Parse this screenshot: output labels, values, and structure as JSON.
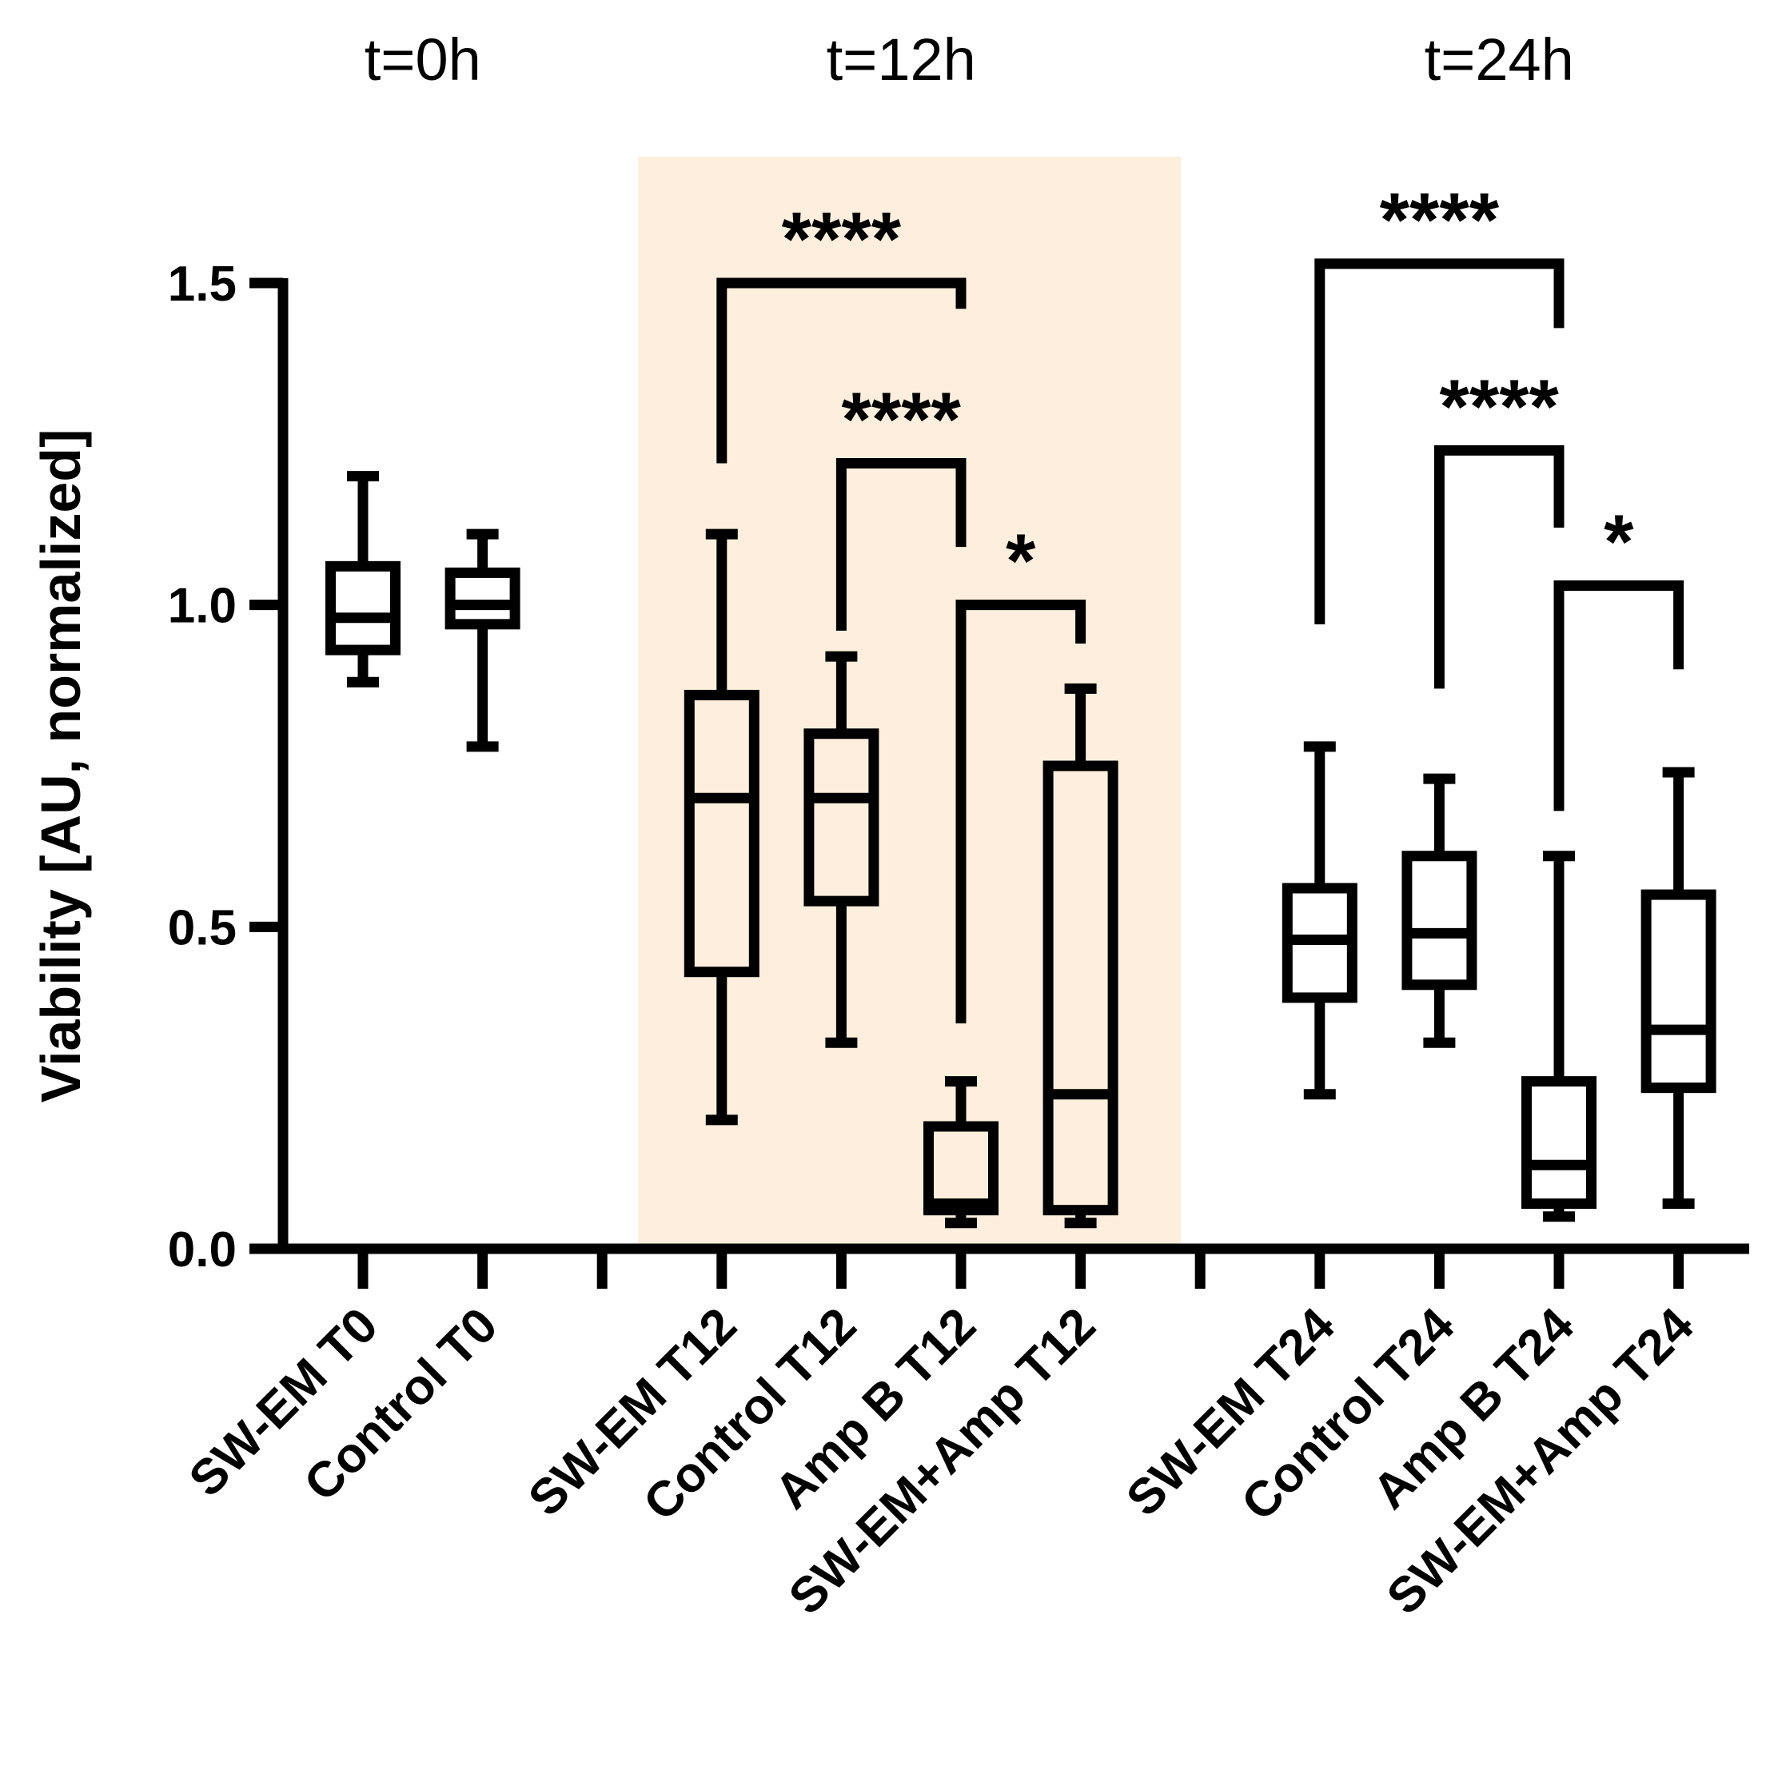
{
  "chart_data": {
    "type": "box",
    "ylabel": "Viability [AU, normalized]",
    "ylim": [
      0,
      1.5
    ],
    "yticks": [
      "0.0",
      "0.5",
      "1.0",
      "1.5"
    ],
    "ytick_values": [
      0,
      0.5,
      1.0,
      1.5
    ],
    "groups": [
      {
        "title": "t=0h",
        "highlight": false
      },
      {
        "title": "t=12h",
        "highlight": true,
        "highlight_color": "#fdeedd"
      },
      {
        "title": "t=24h",
        "highlight": false
      }
    ],
    "boxes": [
      {
        "label": "SW-EM T0",
        "group": 0,
        "slot": 0,
        "min": 0.88,
        "q1": 0.93,
        "median": 0.98,
        "q3": 1.06,
        "max": 1.2
      },
      {
        "label": "Control T0",
        "group": 0,
        "slot": 1,
        "min": 0.78,
        "q1": 0.97,
        "median": 1.0,
        "q3": 1.05,
        "max": 1.11
      },
      {
        "label": "SW-EM T12",
        "group": 1,
        "slot": 3,
        "min": 0.2,
        "q1": 0.43,
        "median": 0.7,
        "q3": 0.86,
        "max": 1.11
      },
      {
        "label": "Control T12",
        "group": 1,
        "slot": 4,
        "min": 0.32,
        "q1": 0.54,
        "median": 0.7,
        "q3": 0.8,
        "max": 0.92
      },
      {
        "label": "Amp B T12",
        "group": 1,
        "slot": 5,
        "min": 0.04,
        "q1": 0.06,
        "median": 0.07,
        "q3": 0.19,
        "max": 0.26
      },
      {
        "label": "SW-EM+Amp T12",
        "group": 1,
        "slot": 6,
        "min": 0.04,
        "q1": 0.06,
        "median": 0.24,
        "q3": 0.75,
        "max": 0.87
      },
      {
        "label": "SW-EM T24",
        "group": 2,
        "slot": 8,
        "min": 0.24,
        "q1": 0.39,
        "median": 0.48,
        "q3": 0.56,
        "max": 0.78
      },
      {
        "label": "Control T24",
        "group": 2,
        "slot": 9,
        "min": 0.32,
        "q1": 0.41,
        "median": 0.49,
        "q3": 0.61,
        "max": 0.73
      },
      {
        "label": "Amp B T24",
        "group": 2,
        "slot": 10,
        "min": 0.05,
        "q1": 0.07,
        "median": 0.13,
        "q3": 0.26,
        "max": 0.61
      },
      {
        "label": "SW-EM+Amp T24",
        "group": 2,
        "slot": 11,
        "min": 0.07,
        "q1": 0.25,
        "median": 0.34,
        "q3": 0.55,
        "max": 0.74
      }
    ],
    "significance": [
      {
        "from": "SW-EM T12",
        "to": "Amp B T12",
        "text": "****",
        "top": 1.5,
        "left_bottom": 1.22,
        "right_bottom": 1.46
      },
      {
        "from": "Control T12",
        "to": "Amp B T12",
        "text": "****",
        "top": 1.22,
        "left_bottom": 0.96,
        "right_bottom": 1.09
      },
      {
        "from": "Amp B T12",
        "to": "SW-EM+Amp T12",
        "text": "*",
        "top": 1.0,
        "left_bottom": 0.35,
        "right_bottom": 0.94
      },
      {
        "from": "SW-EM T24",
        "to": "Amp B T24",
        "text": "****",
        "top": 1.53,
        "left_bottom": 0.97,
        "right_bottom": 1.43
      },
      {
        "from": "Control T24",
        "to": "Amp B T24",
        "text": "****",
        "top": 1.24,
        "left_bottom": 0.87,
        "right_bottom": 1.12
      },
      {
        "from": "Amp B T24",
        "to": "SW-EM+Amp T24",
        "text": "*",
        "top": 1.03,
        "left_bottom": 0.68,
        "right_bottom": 0.9
      }
    ]
  }
}
